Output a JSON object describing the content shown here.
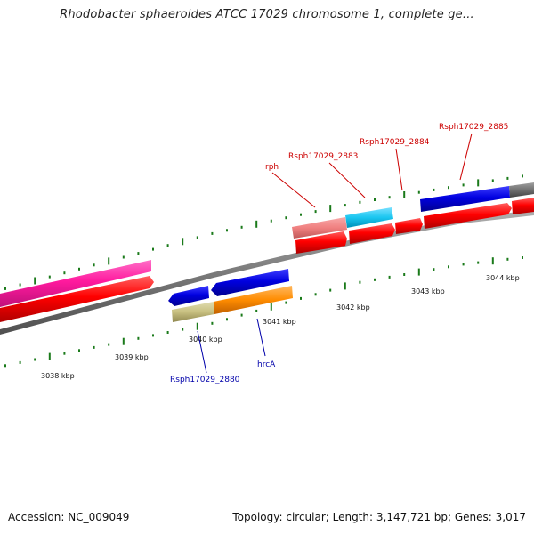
{
  "title": "Rhodobacter sphaeroides ATCC 17029 chromosome 1, complete ge...",
  "footer": {
    "accession": "Accession: NC_009049",
    "topology": "Topology: circular; Length: 3,147,721 bp; Genes: 3,017"
  },
  "scale_labels": [
    "3038 kbp",
    "3039 kbp",
    "3040 kbp",
    "3041 kbp",
    "3042 kbp",
    "3043 kbp",
    "3044 kbp"
  ],
  "gene_labels": {
    "top": [
      "rph",
      "Rsph17029_2883",
      "Rsph17029_2884",
      "Rsph17029_2885"
    ],
    "bottom": [
      "Rsph17029_2880",
      "hrcA"
    ]
  },
  "colors": {
    "top_label": "#cc0000",
    "bottom_label": "#0000aa",
    "tick": "#1a7a1a",
    "backbone": "#808080",
    "cds": "#ff0000",
    "blue": "#0000e0",
    "magenta": "#ff1a9e",
    "salmon": "#f08080",
    "cyan": "#1ac6f0",
    "khaki": "#c8c080",
    "orange": "#ff8c00",
    "gray_gene": "#707070"
  }
}
